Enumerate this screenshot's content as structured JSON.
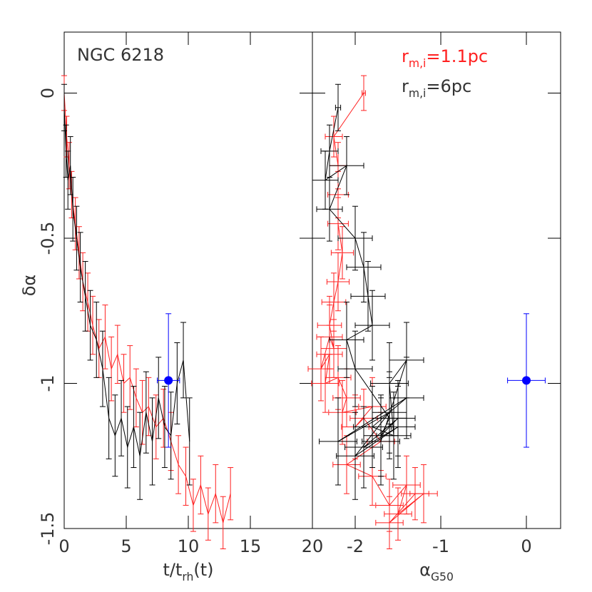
{
  "chart_data": [
    {
      "type": "scatter",
      "xlabel": [
        "t/t",
        "rh",
        "(t)"
      ],
      "ylabel": "δα",
      "annotations": [
        "NGC 6218"
      ],
      "xlim": [
        0,
        20
      ],
      "ylim": [
        -1.5,
        0.21
      ],
      "xticks": [
        0,
        5,
        10,
        15,
        20
      ],
      "yticks": [
        0,
        -0.5,
        -1,
        -1.5
      ],
      "ytick_labels": true,
      "series": [
        {
          "color": "#ff2020",
          "line": true,
          "x": [
            0,
            0.2,
            0.4,
            0.6,
            0.9,
            1.2,
            1.5,
            1.9,
            2.3,
            2.8,
            3.3,
            3.8,
            4.3,
            4.8,
            5.3,
            5.8,
            6.3,
            6.8,
            7.4,
            8.0,
            8.6,
            9.2,
            9.8,
            10.4,
            11.0,
            11.6,
            12.2,
            12.8,
            13.4
          ],
          "values": [
            0,
            -0.15,
            -0.25,
            -0.35,
            -0.45,
            -0.55,
            -0.65,
            -0.72,
            -0.8,
            -0.88,
            -0.84,
            -0.95,
            -0.9,
            -1.0,
            -0.98,
            -1.05,
            -1.1,
            -1.08,
            -1.15,
            -1.12,
            -1.2,
            -1.28,
            -1.32,
            -1.42,
            -1.35,
            -1.45,
            -1.38,
            -1.48,
            -1.38
          ],
          "yerr": [
            0.06,
            0.07,
            0.08,
            0.08,
            0.09,
            0.09,
            0.1,
            0.1,
            0.1,
            0.1,
            0.11,
            0.11,
            0.1,
            0.1,
            0.11,
            0.1,
            0.11,
            0.1,
            0.11,
            0.1,
            0.1,
            0.1,
            0.1,
            0.09,
            0.1,
            0.09,
            0.1,
            0.09,
            0.09
          ]
        },
        {
          "color": "#000000",
          "line": true,
          "x": [
            0,
            0.15,
            0.3,
            0.5,
            0.7,
            1.0,
            1.3,
            1.7,
            2.1,
            2.6,
            3.1,
            3.6,
            4.1,
            4.6,
            5.1,
            5.6,
            6.1,
            6.6,
            7.1,
            7.6,
            8.1,
            8.6,
            9.1,
            9.6,
            10.1
          ],
          "values": [
            -0.05,
            -0.2,
            -0.3,
            -0.25,
            -0.4,
            -0.5,
            -0.6,
            -0.7,
            -0.8,
            -0.85,
            -0.95,
            -1.12,
            -1.18,
            -1.12,
            -1.22,
            -1.15,
            -1.25,
            -1.1,
            -1.2,
            -1.05,
            -1.15,
            -1.18,
            -1.0,
            -0.92,
            -1.2
          ],
          "yerr": [
            0.08,
            0.09,
            0.1,
            0.1,
            0.11,
            0.11,
            0.12,
            0.12,
            0.12,
            0.13,
            0.13,
            0.14,
            0.14,
            0.13,
            0.14,
            0.14,
            0.15,
            0.14,
            0.15,
            0.14,
            0.14,
            0.15,
            0.14,
            0.13,
            0.15
          ]
        },
        {
          "color": "#0000ff",
          "line": false,
          "marker": true,
          "x": [
            8.4
          ],
          "values": [
            -0.99
          ],
          "xerr": [
            0.9
          ],
          "yerr": [
            0.23
          ]
        }
      ]
    },
    {
      "type": "scatter",
      "xlabel": [
        "α",
        "G50"
      ],
      "xlim": [
        -2.5,
        0.4
      ],
      "ylim": [
        -1.5,
        0.21
      ],
      "xticks": [
        -2,
        -1,
        0
      ],
      "yticks": [
        0,
        -0.5,
        -1,
        -1.5
      ],
      "ytick_labels": false,
      "series": [
        {
          "name": [
            "r",
            "m,i",
            "=1.1pc"
          ],
          "color": "#ff2020",
          "line": true,
          "x": [
            -1.9,
            -2.25,
            -2.2,
            -2.2,
            -2.2,
            -2.15,
            -2.2,
            -2.25,
            -2.3,
            -2.25,
            -2.3,
            -2.4,
            -2.3,
            -2.35,
            -2.2,
            -2.1,
            -2.15,
            -1.8,
            -2.0,
            -1.9,
            -1.7,
            -2.1,
            -1.8,
            -1.6,
            -1.4,
            -1.5,
            -1.2,
            -1.6,
            -1.3
          ],
          "values": [
            0,
            -0.15,
            -0.25,
            -0.35,
            -0.45,
            -0.55,
            -0.65,
            -0.72,
            -0.8,
            -0.88,
            -0.84,
            -0.95,
            -0.9,
            -1.0,
            -0.98,
            -1.05,
            -1.1,
            -1.08,
            -1.15,
            -1.12,
            -1.2,
            -1.28,
            -1.32,
            -1.42,
            -1.35,
            -1.45,
            -1.38,
            -1.48,
            -1.38
          ],
          "xerr": [
            0.02,
            0.1,
            0.1,
            0.12,
            0.12,
            0.13,
            0.13,
            0.14,
            0.14,
            0.15,
            0.15,
            0.15,
            0.15,
            0.16,
            0.15,
            0.16,
            0.16,
            0.16,
            0.16,
            0.16,
            0.16,
            0.16,
            0.16,
            0.16,
            0.16,
            0.16,
            0.16,
            0.16,
            0.16
          ],
          "yerr": [
            0.06,
            0.07,
            0.08,
            0.08,
            0.09,
            0.09,
            0.1,
            0.1,
            0.1,
            0.1,
            0.11,
            0.11,
            0.1,
            0.1,
            0.11,
            0.1,
            0.11,
            0.1,
            0.11,
            0.1,
            0.1,
            0.1,
            0.1,
            0.09,
            0.1,
            0.09,
            0.1,
            0.09,
            0.09
          ]
        },
        {
          "name": [
            "r",
            "m,i",
            "=6pc"
          ],
          "color": "#000000",
          "line": true,
          "x": [
            -2.2,
            -2.3,
            -2.35,
            -2.1,
            -2.3,
            -2.0,
            -1.9,
            -1.85,
            -1.8,
            -2.1,
            -2.0,
            -1.6,
            -1.7,
            -1.5,
            -1.9,
            -1.5,
            -2.0,
            -1.6,
            -2.2,
            -1.4,
            -1.8,
            -1.55,
            -1.6,
            -1.4,
            -1.7
          ],
          "values": [
            -0.05,
            -0.2,
            -0.3,
            -0.25,
            -0.4,
            -0.5,
            -0.6,
            -0.7,
            -0.8,
            -0.85,
            -0.95,
            -1.12,
            -1.18,
            -1.12,
            -1.22,
            -1.15,
            -1.25,
            -1.1,
            -1.2,
            -1.05,
            -1.15,
            -1.18,
            -1.0,
            -0.92,
            -1.2
          ],
          "xerr": [
            0.03,
            0.1,
            0.15,
            0.2,
            0.15,
            0.2,
            0.2,
            0.2,
            0.2,
            0.2,
            0.2,
            0.2,
            0.2,
            0.2,
            0.22,
            0.2,
            0.22,
            0.2,
            0.22,
            0.2,
            0.22,
            0.2,
            0.22,
            0.2,
            0.22
          ],
          "yerr": [
            0.08,
            0.09,
            0.1,
            0.1,
            0.11,
            0.11,
            0.12,
            0.12,
            0.12,
            0.13,
            0.13,
            0.14,
            0.14,
            0.13,
            0.14,
            0.14,
            0.15,
            0.14,
            0.15,
            0.14,
            0.14,
            0.15,
            0.14,
            0.13,
            0.15
          ]
        },
        {
          "color": "#0000ff",
          "line": false,
          "marker": true,
          "x": [
            0
          ],
          "values": [
            -0.99
          ],
          "xerr": [
            0.22
          ],
          "yerr": [
            0.23
          ]
        }
      ]
    }
  ]
}
